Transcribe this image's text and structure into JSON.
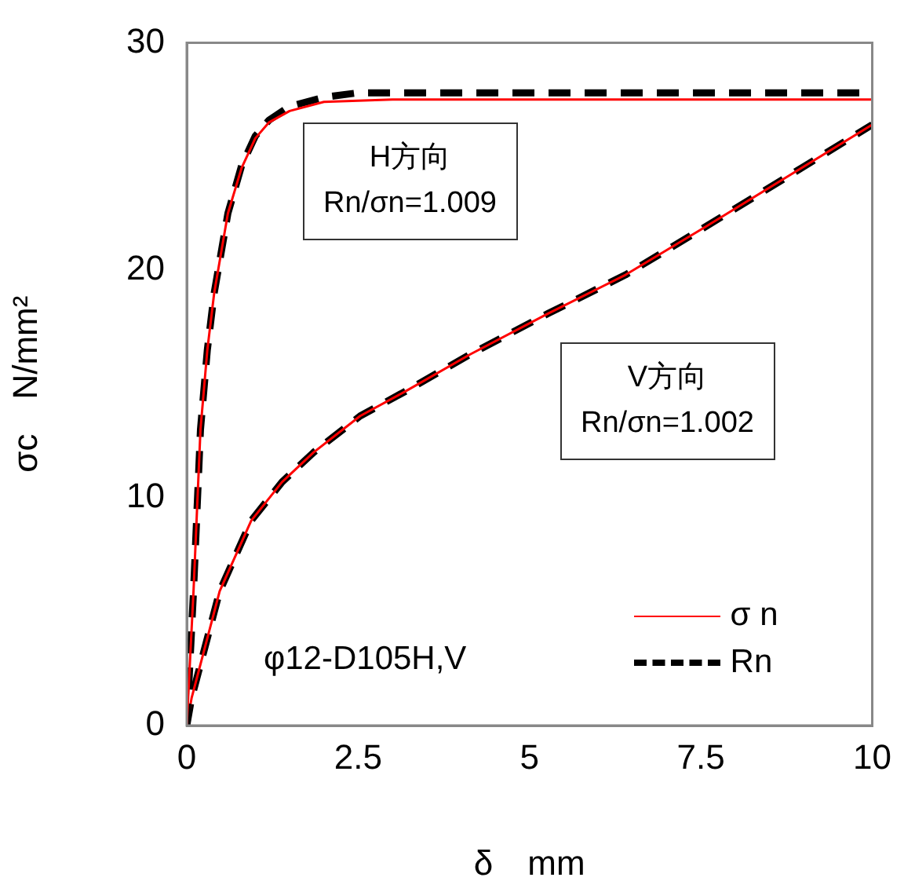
{
  "chart_data": {
    "type": "line",
    "xlabel": "δ　mm",
    "ylabel": "σc　N/mm²",
    "xlim": [
      0,
      10
    ],
    "xticks": [
      0,
      2.5,
      5,
      7.5,
      10
    ],
    "ylim": [
      0,
      30
    ],
    "yticks": [
      0,
      10,
      20,
      30
    ],
    "grid": false,
    "legend": "bottom right",
    "marker": "none",
    "annotations": [
      "H方向\nRn/σn=1.009",
      "V方向\nRn/σn=1.002",
      "φ12-D105H,V"
    ],
    "series": [
      {
        "name": "σ n",
        "color": "#ff0000",
        "line_style": "solid",
        "x": [
          0,
          0.05,
          0.1,
          0.2,
          0.3,
          0.4,
          0.6,
          0.8,
          1.0,
          1.2,
          1.5,
          2.0,
          3.0,
          10
        ],
        "values": [
          0,
          3,
          6,
          13,
          16.5,
          19,
          22.5,
          24.5,
          25.8,
          26.5,
          27.0,
          27.4,
          27.5,
          27.5
        ]
      },
      {
        "name": "Rn",
        "color": "#000000",
        "line_style": "dashed",
        "x": [
          0,
          0.05,
          0.1,
          0.2,
          0.3,
          0.4,
          0.6,
          0.8,
          1.0,
          1.2,
          1.5,
          2.0,
          2.5,
          10
        ],
        "values": [
          0,
          3,
          6,
          13,
          16.5,
          19,
          22.5,
          24.6,
          25.9,
          26.6,
          27.2,
          27.6,
          27.8,
          27.8
        ]
      },
      {
        "color": "#ff0000",
        "line_style": "solid",
        "x": [
          0,
          0.07,
          0.48,
          0.94,
          1.39,
          1.85,
          2.53,
          3.2,
          4.13,
          5.27,
          6.4,
          7.56,
          8.7,
          10
        ],
        "values": [
          0,
          1.2,
          5.9,
          9.0,
          10.7,
          12.0,
          13.6,
          14.7,
          16.3,
          18.1,
          19.8,
          21.9,
          24.0,
          26.4
        ]
      },
      {
        "color": "#000000",
        "line_style": "dashed",
        "x": [
          0,
          0.07,
          0.48,
          0.94,
          1.39,
          1.85,
          2.53,
          3.2,
          4.13,
          5.27,
          6.4,
          7.56,
          8.7,
          10
        ],
        "values": [
          0,
          1.2,
          5.9,
          9.0,
          10.7,
          12.0,
          13.6,
          14.7,
          16.3,
          18.1,
          19.8,
          21.9,
          24.0,
          26.4
        ]
      }
    ]
  }
}
